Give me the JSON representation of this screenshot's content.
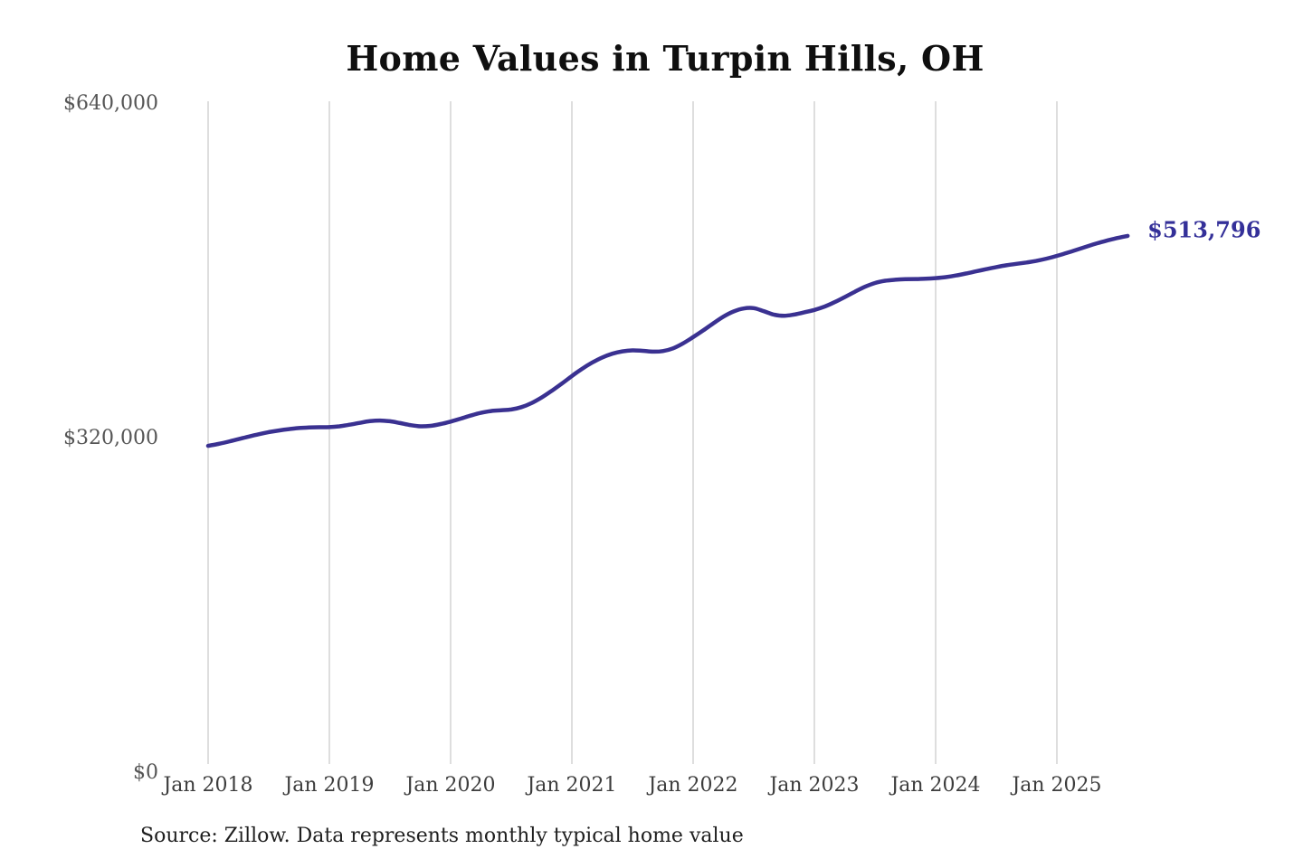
{
  "page": {
    "background": "#ffffff"
  },
  "chart_data": {
    "type": "line",
    "title": "Home Values in Turpin Hills, OH",
    "source_note": "Source: Zillow. Data represents monthly typical home value",
    "end_label": "$513,796",
    "final_value": 513796,
    "line_color": "#3a3191",
    "end_label_color": "#343099",
    "grid_color": "#cccccc",
    "ytick_color": "#555555",
    "xtick_color": "#3d3d3d",
    "title_color": "#0f0f0f",
    "source_color": "#1f1f1f",
    "grid": "vertical-only",
    "legend": "none",
    "ylim": [
      0,
      640000
    ],
    "yticks": [
      {
        "label": "$0",
        "value": 0
      },
      {
        "label": "$320,000",
        "value": 320000
      },
      {
        "label": "$640,000",
        "value": 640000
      }
    ],
    "xticks": [
      "Jan 2018",
      "Jan 2019",
      "Jan 2020",
      "Jan 2021",
      "Jan 2022",
      "Jan 2023",
      "Jan 2024",
      "Jan 2025"
    ],
    "x_start": "2018-01",
    "x_end": "2025-08",
    "x_frequency": "monthly",
    "series": [
      {
        "name": "Typical home value",
        "unit": "USD",
        "monthly_values": [
          313000,
          314800,
          317000,
          319400,
          321800,
          324100,
          326100,
          327700,
          329000,
          330000,
          330600,
          330800,
          330900,
          331700,
          333200,
          335000,
          336600,
          337200,
          336500,
          334800,
          332900,
          331700,
          332100,
          333800,
          336200,
          339000,
          342000,
          344600,
          346300,
          347000,
          347800,
          350000,
          353800,
          359200,
          365600,
          372500,
          379800,
          386600,
          392600,
          397500,
          401100,
          403400,
          404300,
          403900,
          403100,
          403600,
          406200,
          411000,
          417000,
          423400,
          430200,
          436600,
          441500,
          444400,
          444700,
          441800,
          438500,
          437400,
          438600,
          440700,
          443000,
          446200,
          450400,
          455300,
          460400,
          465100,
          468800,
          470900,
          471900,
          472400,
          472600,
          472900,
          473400,
          474400,
          475900,
          477800,
          479900,
          482000,
          484000,
          485700,
          487100,
          488400,
          490000,
          492100,
          494700,
          497600,
          500700,
          503800,
          506800,
          509500,
          511800,
          513796
        ]
      }
    ]
  }
}
